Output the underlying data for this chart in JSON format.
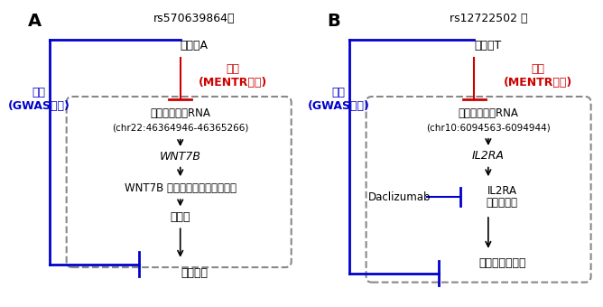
{
  "panel_A": {
    "label": "A",
    "snp_line1": "rs570639864の",
    "snp_line2": "アレルA",
    "gwas_label": "減少\n(GWASより)",
    "mentr_label": "減少\n(MENTR予測)",
    "enhancer_line1": "エンハンサーRNA",
    "enhancer_line2": "(chr22:46364946-46365266)",
    "gene": "WNT7B",
    "protein": "WNT7B タンパク質（リガンド）",
    "intermediate": "骨形成",
    "outcome": "踵骨密度"
  },
  "panel_B": {
    "label": "B",
    "snp_line1": "rs12722502 の",
    "snp_line2": "アレルT",
    "gwas_label": "減少\n(GWASより)",
    "mentr_label": "減少\n(MENTR予測)",
    "enhancer_line1": "エンハンサーRNA",
    "enhancer_line2": "(chr10:6094563-6094944)",
    "gene": "IL2RA",
    "protein_line1": "IL2RA",
    "protein_line2": "タンパク質",
    "drug": "Daclizumab",
    "outcome": "喘息発症リスク"
  },
  "colors": {
    "black": "#000000",
    "blue": "#0000CC",
    "red": "#CC0000",
    "gray": "#888888",
    "bg": "#ffffff"
  }
}
